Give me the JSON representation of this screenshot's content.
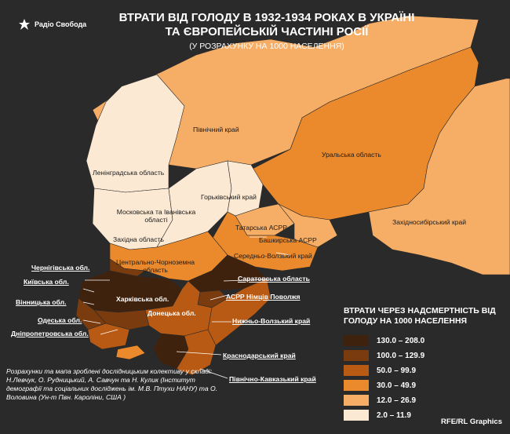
{
  "header": {
    "logo_text": "Радіо Свобода",
    "title": "ВТРАТИ ВІД ГОЛОДУ В 1932-1934 РОКАХ В УКРАЇНІ ТА ЄВРОПЕЙСЬКІЙ ЧАСТИНІ РОСІЇ",
    "subtitle": "(У РОЗРАХУНКУ НА 1000 НАСЕЛЕННЯ)"
  },
  "colors": {
    "background": "#2a2a2a",
    "class_1": "#3f220e",
    "class_2": "#7a3c0e",
    "class_3": "#b95a14",
    "class_4": "#ea8a2c",
    "class_5": "#f6ad66",
    "class_6": "#fbe9d3"
  },
  "regions": {
    "pivnichny": "Північний край",
    "uralska": "Уральська область",
    "leningradska": "Ленінградська область",
    "gorkivsky": "Горьківський край",
    "moskovska": "Московська та Іванівська області",
    "zakhidna": "Західна область",
    "tatarska": "Татарська АСРР",
    "bashkirska": "Башкирська АСРР",
    "zakhidnosybirsky": "Західносибірський край",
    "tsentralno": "Центрально-Чорноземна область",
    "seredno": "Середньо-Волзький край",
    "saratovska": "Саратовська область",
    "nimtsiv": "АСРР Німців Поволжя",
    "kharkivska": "Харківська обл.",
    "donetska": "Донецька обл.",
    "nyzhno": "Нижньо-Волзький край",
    "krasnodarsky": "Краснодарський край",
    "pivnichno_kavkazky": "Північно-Кавказький край"
  },
  "callouts": {
    "chernihivska": "Чернігівська обл.",
    "kyivska": "Київська обл.",
    "vinnytska": "Вінницька обл.",
    "odeska": "Одеська обл.",
    "dnipropetrovska": "Дніпропетровська обл."
  },
  "legend": {
    "title": "ВТРАТИ ЧЕРЕЗ НАДСМЕРТНІСТЬ ВІД ГОЛОДУ НА 1000 НАСЕЛЕННЯ",
    "items": [
      {
        "label": "130.0 – 208.0",
        "color": "#3f220e"
      },
      {
        "label": "100.0 – 129.9",
        "color": "#7a3c0e"
      },
      {
        "label": "50.0 – 99.9",
        "color": "#b95a14"
      },
      {
        "label": "30.0 – 49.9",
        "color": "#ea8a2c"
      },
      {
        "label": "12.0 – 26.9",
        "color": "#f6ad66"
      },
      {
        "label": "2.0 – 11.9",
        "color": "#fbe9d3"
      }
    ]
  },
  "footnote": "Розрахунки та мапа зроблені дослідницьким колективу у складі: Н.Левчук, О. Рудницький, А. Савчун та Н. Кулик (Інститут демографії та соціальних досліджень ім. М.В. Птухи НАНУ) та О. Воловина  (Ун-т Пвн. Кароліни, США )",
  "credit": "RFE/RL Graphics"
}
